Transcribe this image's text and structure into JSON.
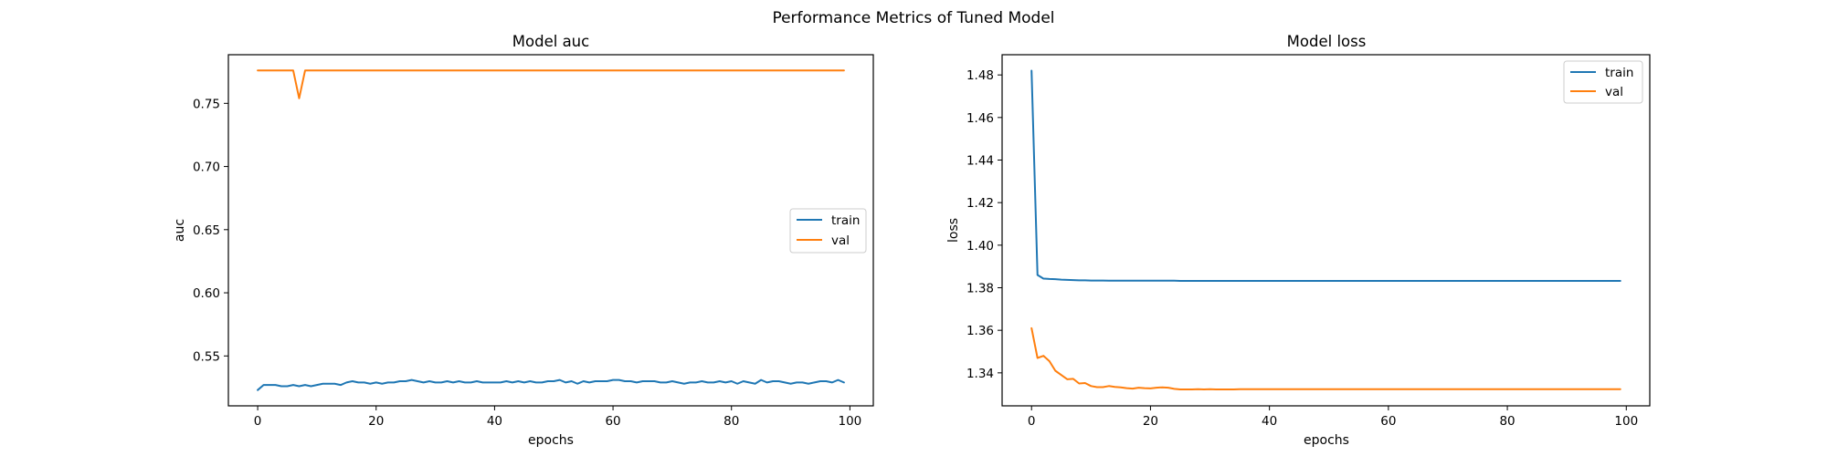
{
  "figure": {
    "title": "Performance Metrics of Tuned Model"
  },
  "chart_data": [
    {
      "type": "line",
      "title": "Model auc",
      "xlabel": "epochs",
      "ylabel": "auc",
      "xlim": [
        -4.95,
        103.95
      ],
      "ylim": [
        0.5105,
        0.7885
      ],
      "xticks": [
        0,
        20,
        40,
        60,
        80,
        100
      ],
      "yticks": [
        0.55,
        0.6,
        0.65,
        0.7,
        0.75
      ],
      "ytick_labels": [
        "0.55",
        "0.60",
        "0.65",
        "0.70",
        "0.75"
      ],
      "grid": false,
      "legend": {
        "placement": "center-right",
        "entries": [
          "train",
          "val"
        ]
      },
      "series": [
        {
          "name": "train",
          "color": "#1f77b4",
          "x": [
            0,
            1,
            2,
            3,
            4,
            5,
            6,
            7,
            8,
            9,
            10,
            11,
            12,
            13,
            14,
            15,
            16,
            17,
            18,
            19,
            20,
            21,
            22,
            23,
            24,
            25,
            26,
            27,
            28,
            29,
            30,
            31,
            32,
            33,
            34,
            35,
            36,
            37,
            38,
            39,
            40,
            41,
            42,
            43,
            44,
            45,
            46,
            47,
            48,
            49,
            50,
            51,
            52,
            53,
            54,
            55,
            56,
            57,
            58,
            59,
            60,
            61,
            62,
            63,
            64,
            65,
            66,
            67,
            68,
            69,
            70,
            71,
            72,
            73,
            74,
            75,
            76,
            77,
            78,
            79,
            80,
            81,
            82,
            83,
            84,
            85,
            86,
            87,
            88,
            89,
            90,
            91,
            92,
            93,
            94,
            95,
            96,
            97,
            98,
            99
          ],
          "values": [
            0.523,
            0.527,
            0.527,
            0.527,
            0.526,
            0.526,
            0.527,
            0.526,
            0.527,
            0.526,
            0.527,
            0.528,
            0.528,
            0.528,
            0.527,
            0.529,
            0.53,
            0.529,
            0.529,
            0.528,
            0.529,
            0.528,
            0.529,
            0.529,
            0.53,
            0.53,
            0.531,
            0.53,
            0.529,
            0.53,
            0.529,
            0.529,
            0.53,
            0.529,
            0.53,
            0.529,
            0.529,
            0.53,
            0.529,
            0.529,
            0.529,
            0.529,
            0.53,
            0.529,
            0.53,
            0.529,
            0.53,
            0.529,
            0.529,
            0.53,
            0.53,
            0.531,
            0.529,
            0.53,
            0.528,
            0.53,
            0.529,
            0.53,
            0.53,
            0.53,
            0.531,
            0.531,
            0.53,
            0.53,
            0.529,
            0.53,
            0.53,
            0.53,
            0.529,
            0.529,
            0.53,
            0.529,
            0.528,
            0.529,
            0.529,
            0.53,
            0.529,
            0.529,
            0.53,
            0.529,
            0.53,
            0.528,
            0.53,
            0.529,
            0.528,
            0.531,
            0.529,
            0.53,
            0.53,
            0.529,
            0.528,
            0.529,
            0.529,
            0.528,
            0.529,
            0.53,
            0.53,
            0.529,
            0.531,
            0.529
          ]
        },
        {
          "name": "val",
          "color": "#ff7f0e",
          "x": [
            0,
            1,
            2,
            3,
            4,
            5,
            6,
            7,
            8,
            9,
            10,
            11,
            12,
            13,
            14,
            15,
            16,
            17,
            18,
            19,
            20,
            21,
            22,
            23,
            24,
            25,
            26,
            27,
            28,
            29,
            30,
            31,
            32,
            33,
            34,
            35,
            36,
            37,
            38,
            39,
            40,
            41,
            42,
            43,
            44,
            45,
            46,
            47,
            48,
            49,
            50,
            51,
            52,
            53,
            54,
            55,
            56,
            57,
            58,
            59,
            60,
            61,
            62,
            63,
            64,
            65,
            66,
            67,
            68,
            69,
            70,
            71,
            72,
            73,
            74,
            75,
            76,
            77,
            78,
            79,
            80,
            81,
            82,
            83,
            84,
            85,
            86,
            87,
            88,
            89,
            90,
            91,
            92,
            93,
            94,
            95,
            96,
            97,
            98,
            99
          ],
          "values": [
            0.776,
            0.776,
            0.776,
            0.776,
            0.776,
            0.776,
            0.776,
            0.754,
            0.776,
            0.776,
            0.776,
            0.776,
            0.776,
            0.776,
            0.776,
            0.776,
            0.776,
            0.776,
            0.776,
            0.776,
            0.776,
            0.776,
            0.776,
            0.776,
            0.776,
            0.776,
            0.776,
            0.776,
            0.776,
            0.776,
            0.776,
            0.776,
            0.776,
            0.776,
            0.776,
            0.776,
            0.776,
            0.776,
            0.776,
            0.776,
            0.776,
            0.776,
            0.776,
            0.776,
            0.776,
            0.776,
            0.776,
            0.776,
            0.776,
            0.776,
            0.776,
            0.776,
            0.776,
            0.776,
            0.776,
            0.776,
            0.776,
            0.776,
            0.776,
            0.776,
            0.776,
            0.776,
            0.776,
            0.776,
            0.776,
            0.776,
            0.776,
            0.776,
            0.776,
            0.776,
            0.776,
            0.776,
            0.776,
            0.776,
            0.776,
            0.776,
            0.776,
            0.776,
            0.776,
            0.776,
            0.776,
            0.776,
            0.776,
            0.776,
            0.776,
            0.776,
            0.776,
            0.776,
            0.776,
            0.776,
            0.776,
            0.776,
            0.776,
            0.776,
            0.776,
            0.776,
            0.776,
            0.776,
            0.776,
            0.776
          ]
        }
      ]
    },
    {
      "type": "line",
      "title": "Model loss",
      "xlabel": "epochs",
      "ylabel": "loss",
      "xlim": [
        -4.95,
        103.95
      ],
      "ylim": [
        1.3245,
        1.4895
      ],
      "xticks": [
        0,
        20,
        40,
        60,
        80,
        100
      ],
      "yticks": [
        1.34,
        1.36,
        1.38,
        1.4,
        1.42,
        1.44,
        1.46,
        1.48
      ],
      "ytick_labels": [
        "1.34",
        "1.36",
        "1.38",
        "1.40",
        "1.42",
        "1.44",
        "1.46",
        "1.48"
      ],
      "grid": false,
      "legend": {
        "placement": "upper-right",
        "entries": [
          "train",
          "val"
        ]
      },
      "series": [
        {
          "name": "train",
          "color": "#1f77b4",
          "x": [
            0,
            1,
            2,
            3,
            4,
            5,
            6,
            7,
            8,
            9,
            10,
            11,
            12,
            13,
            14,
            15,
            16,
            17,
            18,
            19,
            20,
            21,
            22,
            23,
            24,
            25,
            26,
            27,
            28,
            29,
            30,
            31,
            32,
            33,
            34,
            35,
            36,
            37,
            38,
            39,
            40,
            41,
            42,
            43,
            44,
            45,
            46,
            47,
            48,
            49,
            50,
            51,
            52,
            53,
            54,
            55,
            56,
            57,
            58,
            59,
            60,
            61,
            62,
            63,
            64,
            65,
            66,
            67,
            68,
            69,
            70,
            71,
            72,
            73,
            74,
            75,
            76,
            77,
            78,
            79,
            80,
            81,
            82,
            83,
            84,
            85,
            86,
            87,
            88,
            89,
            90,
            91,
            92,
            93,
            94,
            95,
            96,
            97,
            98,
            99
          ],
          "values": [
            1.482,
            1.386,
            1.3843,
            1.3841,
            1.384,
            1.3838,
            1.3837,
            1.3836,
            1.3835,
            1.3835,
            1.3834,
            1.3834,
            1.3834,
            1.3833,
            1.3833,
            1.3833,
            1.3833,
            1.3833,
            1.3833,
            1.3833,
            1.3833,
            1.3833,
            1.3833,
            1.3833,
            1.3833,
            1.3832,
            1.3832,
            1.3832,
            1.3832,
            1.3832,
            1.3832,
            1.3832,
            1.3832,
            1.3832,
            1.3832,
            1.3832,
            1.3832,
            1.3832,
            1.3832,
            1.3832,
            1.3832,
            1.3832,
            1.3832,
            1.3832,
            1.3832,
            1.3832,
            1.3832,
            1.3832,
            1.3832,
            1.3832,
            1.3832,
            1.3832,
            1.3832,
            1.3832,
            1.3832,
            1.3832,
            1.3832,
            1.3832,
            1.3832,
            1.3832,
            1.3832,
            1.3832,
            1.3832,
            1.3832,
            1.3832,
            1.3832,
            1.3832,
            1.3832,
            1.3832,
            1.3832,
            1.3832,
            1.3832,
            1.3832,
            1.3832,
            1.3832,
            1.3832,
            1.3832,
            1.3832,
            1.3832,
            1.3832,
            1.3832,
            1.3832,
            1.3832,
            1.3832,
            1.3832,
            1.3832,
            1.3832,
            1.3832,
            1.3832,
            1.3832,
            1.3832,
            1.3832,
            1.3832,
            1.3832,
            1.3832,
            1.3832,
            1.3832,
            1.3832,
            1.3832,
            1.3832
          ]
        },
        {
          "name": "val",
          "color": "#ff7f0e",
          "x": [
            0,
            1,
            2,
            3,
            4,
            5,
            6,
            7,
            8,
            9,
            10,
            11,
            12,
            13,
            14,
            15,
            16,
            17,
            18,
            19,
            20,
            21,
            22,
            23,
            24,
            25,
            26,
            27,
            28,
            29,
            30,
            31,
            32,
            33,
            34,
            35,
            36,
            37,
            38,
            39,
            40,
            41,
            42,
            43,
            44,
            45,
            46,
            47,
            48,
            49,
            50,
            51,
            52,
            53,
            54,
            55,
            56,
            57,
            58,
            59,
            60,
            61,
            62,
            63,
            64,
            65,
            66,
            67,
            68,
            69,
            70,
            71,
            72,
            73,
            74,
            75,
            76,
            77,
            78,
            79,
            80,
            81,
            82,
            83,
            84,
            85,
            86,
            87,
            88,
            89,
            90,
            91,
            92,
            93,
            94,
            95,
            96,
            97,
            98,
            99
          ],
          "values": [
            1.361,
            1.347,
            1.348,
            1.3455,
            1.341,
            1.339,
            1.337,
            1.3372,
            1.335,
            1.3352,
            1.3338,
            1.3333,
            1.3333,
            1.3338,
            1.3334,
            1.3332,
            1.3328,
            1.3326,
            1.333,
            1.3328,
            1.3327,
            1.333,
            1.3332,
            1.333,
            1.3325,
            1.3322,
            1.3322,
            1.3322,
            1.3323,
            1.3322,
            1.3323,
            1.3322,
            1.3322,
            1.3322,
            1.3322,
            1.3323,
            1.3323,
            1.3323,
            1.3323,
            1.3323,
            1.3323,
            1.3323,
            1.3323,
            1.3323,
            1.3323,
            1.3323,
            1.3323,
            1.3323,
            1.3323,
            1.3323,
            1.3323,
            1.3323,
            1.3323,
            1.3323,
            1.3323,
            1.3323,
            1.3323,
            1.3323,
            1.3323,
            1.3323,
            1.3323,
            1.3323,
            1.3323,
            1.3323,
            1.3323,
            1.3323,
            1.3323,
            1.3323,
            1.3323,
            1.3323,
            1.3323,
            1.3323,
            1.3323,
            1.3323,
            1.3323,
            1.3323,
            1.3323,
            1.3323,
            1.3323,
            1.3323,
            1.3323,
            1.3323,
            1.3323,
            1.3323,
            1.3323,
            1.3323,
            1.3323,
            1.3323,
            1.3323,
            1.3323,
            1.3323,
            1.3323,
            1.3323,
            1.3323,
            1.3323,
            1.3323,
            1.3323,
            1.3323,
            1.3323,
            1.3323
          ]
        }
      ]
    }
  ]
}
